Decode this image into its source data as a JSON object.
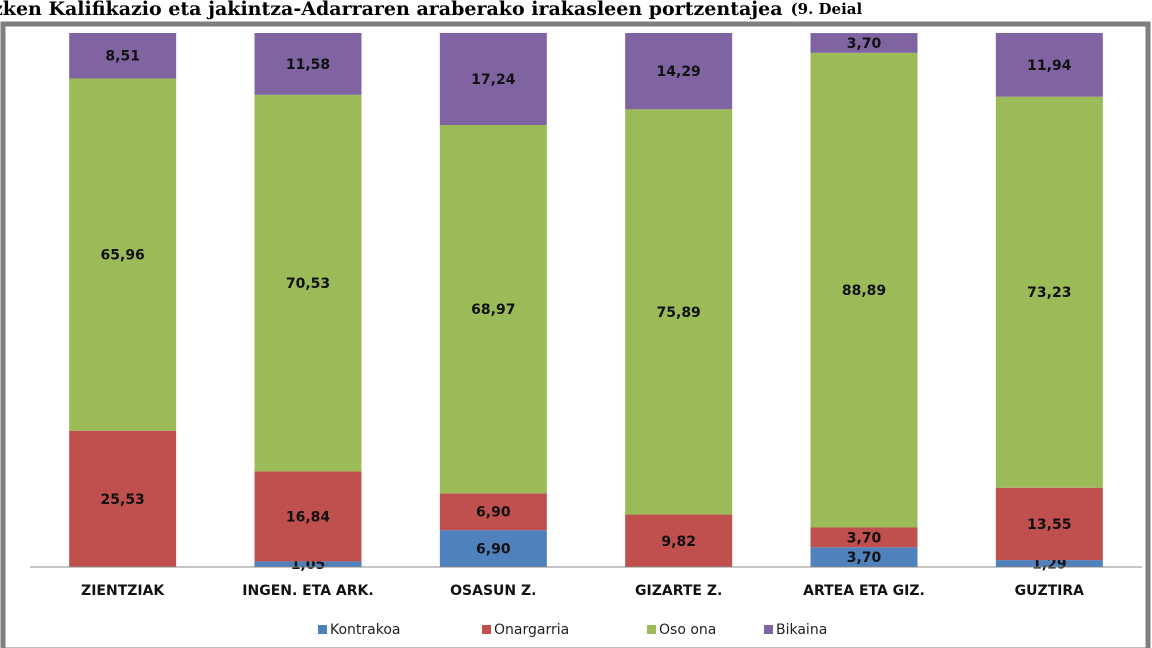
{
  "chart_data": {
    "type": "stacked_bar",
    "title": "zken Kalifikazio eta jakintza-Adarraren araberako irakasleen portzentajea",
    "subtitle": "(9. Deial",
    "categories": [
      "ZIENTZIAK",
      "INGEN. ETA ARK.",
      "OSASUN Z.",
      "GIZARTE Z.",
      "ARTEA ETA GIZ.",
      "GUZTIRA"
    ],
    "ylim": [
      0,
      100
    ],
    "series": [
      {
        "name": "Kontrakoa",
        "color": "#4f81bd",
        "values": [
          null,
          1.05,
          6.9,
          null,
          3.7,
          1.29
        ],
        "value_labels": [
          null,
          "1,05",
          "6,90",
          null,
          "3,70",
          "1,29"
        ]
      },
      {
        "name": "Onargarria",
        "color": "#c0504d",
        "values": [
          25.53,
          16.84,
          6.9,
          9.82,
          3.7,
          13.55
        ],
        "value_labels": [
          "25,53",
          "16,84",
          "6,90",
          "9,82",
          "3,70",
          "13,55"
        ]
      },
      {
        "name": "Oso ona",
        "color": "#9bbb59",
        "values": [
          65.96,
          70.53,
          68.97,
          75.89,
          88.89,
          73.23
        ],
        "value_labels": [
          "65,96",
          "70,53",
          "68,97",
          "75,89",
          "88,89",
          "73,23"
        ]
      },
      {
        "name": "Bikaina",
        "color": "#8064a2",
        "values": [
          8.51,
          11.58,
          17.24,
          14.29,
          3.7,
          11.94
        ],
        "value_labels": [
          "8,51",
          "11,58",
          "17,24",
          "14,29",
          "3,70",
          "11,94"
        ]
      }
    ]
  }
}
